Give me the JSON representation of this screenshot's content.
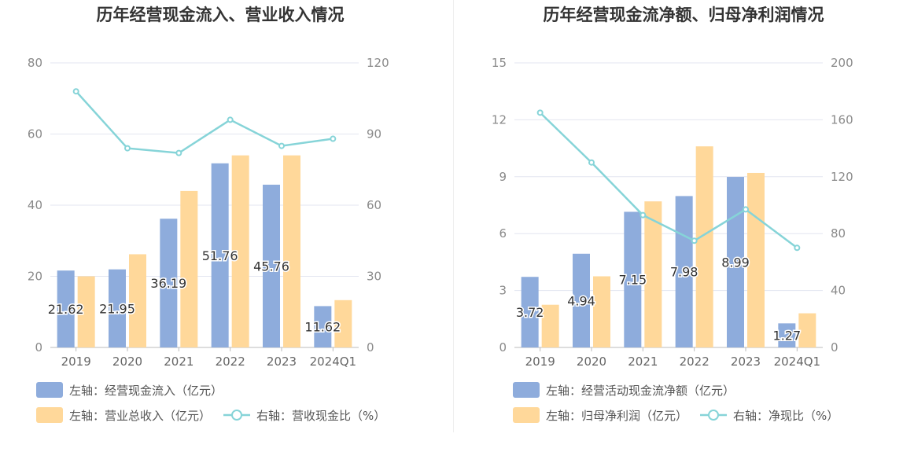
{
  "colors": {
    "bar_primary": "#8eacdc",
    "bar_secondary": "#ffd89a",
    "line": "#86d4d8",
    "grid": "#e3e6f0",
    "axis": "#bbbbbb"
  },
  "chart_data": [
    {
      "type": "bar+line",
      "title": "历年经营现金流入、营业收入情况",
      "categories": [
        "2019",
        "2020",
        "2021",
        "2022",
        "2023",
        "2024Q1"
      ],
      "left_axis": {
        "ylim": [
          0,
          80
        ],
        "ticks": [
          "0",
          "20",
          "40",
          "60",
          "80"
        ]
      },
      "right_axis": {
        "ylim": [
          0,
          120
        ],
        "ticks": [
          "0",
          "30",
          "60",
          "90",
          "120"
        ]
      },
      "grid": true,
      "legend_position": "bottom-left",
      "series": [
        {
          "name": "左轴：经营现金流入（亿元）",
          "type": "bar",
          "axis": "left",
          "values": [
            21.62,
            21.95,
            36.19,
            51.76,
            45.76,
            11.62
          ],
          "labels": [
            "21.62",
            "21.95",
            "36.19",
            "51.76",
            "45.76",
            "11.62"
          ]
        },
        {
          "name": "左轴：营业总收入（亿元）",
          "type": "bar",
          "axis": "left",
          "values": [
            20.0,
            26.2,
            44.0,
            54.0,
            54.0,
            13.3
          ]
        },
        {
          "name": "右轴：营收现金比（%）",
          "type": "line",
          "axis": "right",
          "values": [
            108,
            84,
            82,
            96,
            85,
            88
          ]
        }
      ]
    },
    {
      "type": "bar+line",
      "title": "历年经营现金流净额、归母净利润情况",
      "categories": [
        "2019",
        "2020",
        "2021",
        "2022",
        "2023",
        "2024Q1"
      ],
      "left_axis": {
        "ylim": [
          0,
          15
        ],
        "ticks": [
          "0",
          "3",
          "6",
          "9",
          "12",
          "15"
        ]
      },
      "right_axis": {
        "ylim": [
          0,
          200
        ],
        "ticks": [
          "0",
          "40",
          "80",
          "120",
          "160",
          "200"
        ]
      },
      "grid": true,
      "legend_position": "bottom-left",
      "series": [
        {
          "name": "左轴：经营活动现金流净额（亿元）",
          "type": "bar",
          "axis": "left",
          "values": [
            3.72,
            4.94,
            7.15,
            7.98,
            8.99,
            1.27
          ],
          "labels": [
            "3.72",
            "4.94",
            "7.15",
            "7.98",
            "8.99",
            "1.27"
          ]
        },
        {
          "name": "左轴：归母净利润（亿元）",
          "type": "bar",
          "axis": "left",
          "values": [
            2.25,
            3.75,
            7.7,
            10.6,
            9.2,
            1.8
          ]
        },
        {
          "name": "右轴：净现比（%）",
          "type": "line",
          "axis": "right",
          "values": [
            165,
            130,
            93,
            75,
            97,
            70
          ]
        }
      ]
    }
  ]
}
